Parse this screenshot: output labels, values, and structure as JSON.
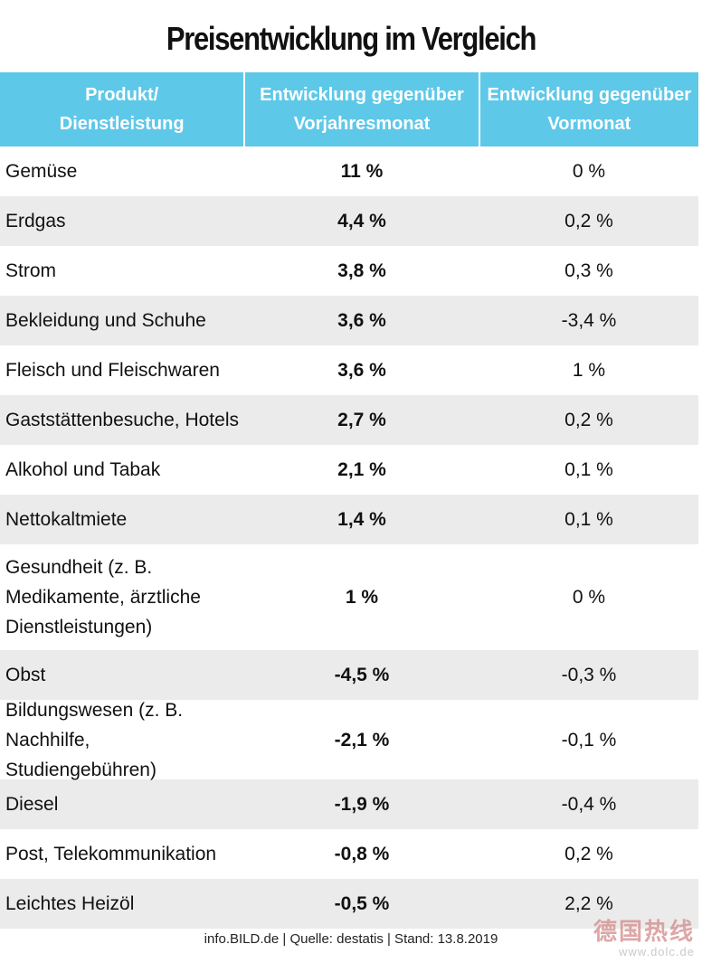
{
  "title": "Preisentwicklung im Vergleich",
  "header": {
    "col1": [
      "Produkt/",
      "Dienstleistung"
    ],
    "col2": [
      "Entwicklung gegenüber",
      "Vorjahresmonat"
    ],
    "col3": [
      "Entwicklung gegenüber",
      "Vormonat"
    ]
  },
  "rows": [
    {
      "product": [
        "Gemüse"
      ],
      "yoy": "11 %",
      "mom": "0 %"
    },
    {
      "product": [
        "Erdgas"
      ],
      "yoy": "4,4 %",
      "mom": "0,2 %"
    },
    {
      "product": [
        "Strom"
      ],
      "yoy": "3,8 %",
      "mom": "0,3 %"
    },
    {
      "product": [
        "Bekleidung und Schuhe"
      ],
      "yoy": "3,6 %",
      "mom": "-3,4 %"
    },
    {
      "product": [
        "Fleisch und Fleischwaren"
      ],
      "yoy": "3,6 %",
      "mom": "1 %"
    },
    {
      "product": [
        "Gaststättenbesuche, Hotels"
      ],
      "yoy": "2,7 %",
      "mom": "0,2 %"
    },
    {
      "product": [
        "Alkohol und Tabak"
      ],
      "yoy": "2,1 %",
      "mom": "0,1 %"
    },
    {
      "product": [
        "Nettokaltmiete"
      ],
      "yoy": "1,4 %",
      "mom": "0,1 %"
    },
    {
      "product": [
        "Gesundheit (z. B.",
        "Medikamente, ärztliche",
        "Dienstleistungen)"
      ],
      "yoy": "1 %",
      "mom": "0 %"
    },
    {
      "product": [
        "Obst"
      ],
      "yoy": "-4,5 %",
      "mom": "-0,3 %"
    },
    {
      "product": [
        "Bildungswesen (z. B.",
        "Nachhilfe, Studiengebühren)"
      ],
      "yoy": "-2,1 %",
      "mom": "-0,1 %"
    },
    {
      "product": [
        "Diesel"
      ],
      "yoy": "-1,9 %",
      "mom": "-0,4 %"
    },
    {
      "product": [
        "Post, Telekommunikation"
      ],
      "yoy": "-0,8 %",
      "mom": "0,2 %"
    },
    {
      "product": [
        "Leichtes Heizöl"
      ],
      "yoy": "-0,5 %",
      "mom": "2,2 %"
    }
  ],
  "footer": "info.BILD.de | Quelle: destatis | Stand: 13.8.2019",
  "watermark": {
    "line1": "德国热线",
    "line2": "www.dolc.de"
  }
}
